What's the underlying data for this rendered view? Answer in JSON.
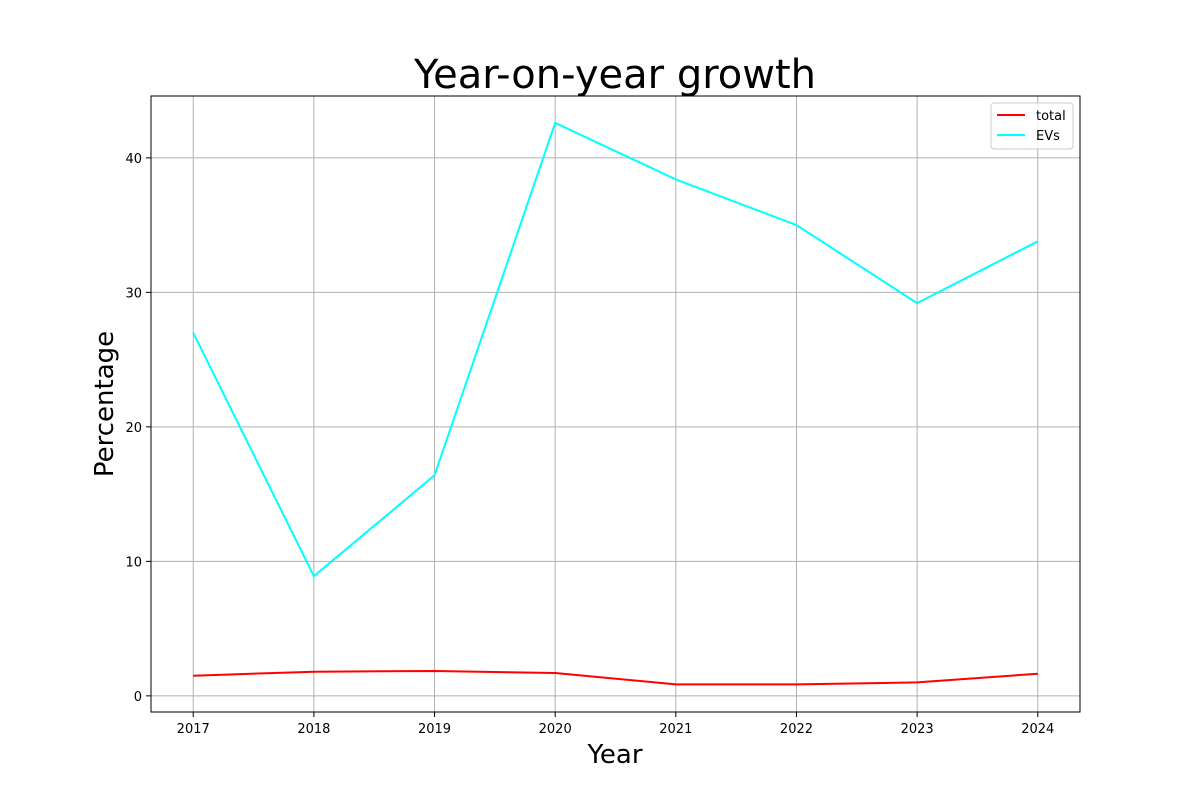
{
  "chart_data": {
    "type": "line",
    "title": "Year-on-year growth",
    "xlabel": "Year",
    "ylabel": "Percentage",
    "x": [
      2017,
      2018,
      2019,
      2020,
      2021,
      2022,
      2023,
      2024
    ],
    "xlim": [
      2016.65,
      2024.35
    ],
    "ylim": [
      -1.2,
      44.6
    ],
    "yticks": [
      0,
      10,
      20,
      30,
      40
    ],
    "grid": true,
    "legend_position": "top-right",
    "series": [
      {
        "name": "total",
        "color": "#ff0000",
        "values": [
          1.5,
          1.8,
          1.85,
          1.7,
          0.85,
          0.85,
          1.0,
          1.65
        ]
      },
      {
        "name": "EVs",
        "color": "#00ffff",
        "values": [
          27.0,
          8.9,
          16.4,
          42.6,
          38.4,
          35.0,
          29.2,
          33.8
        ]
      }
    ]
  }
}
